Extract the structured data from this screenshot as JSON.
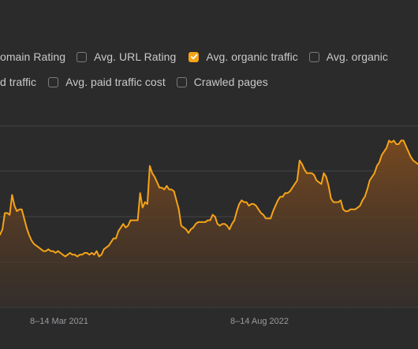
{
  "legend": {
    "row1": [
      {
        "label": "omain Rating",
        "checked": null
      },
      {
        "label": "Avg. URL Rating",
        "checked": false
      },
      {
        "label": "Avg. organic traffic",
        "checked": true
      },
      {
        "label": "Avg. organic",
        "checked": false
      }
    ],
    "row2": [
      {
        "label": "d traffic",
        "checked": null
      },
      {
        "label": "Avg. paid traffic cost",
        "checked": false
      },
      {
        "label": "Crawled pages",
        "checked": false
      }
    ]
  },
  "colors": {
    "background": "#2b2b2c",
    "line": "#f5a317",
    "area_top": "#7a4a1f",
    "area_bottom": "#3a3029",
    "grid": "#454547",
    "text": "#c9c9cb",
    "tick_text": "#9a9a9e"
  },
  "chart_data": {
    "type": "area",
    "x_tick_labels": [
      "8–14 Mar 2021",
      "8–14 Aug 2022"
    ],
    "grid": true,
    "y_range": [
      0,
      100
    ],
    "series": [
      {
        "values": [
          40,
          43,
          52,
          52,
          51,
          62,
          56,
          53,
          54,
          54,
          49,
          44,
          40,
          37,
          35,
          34,
          33,
          32,
          31,
          31,
          32,
          31,
          31,
          30,
          31,
          30,
          29,
          28,
          29,
          30,
          29,
          29,
          28,
          29,
          29,
          30,
          30,
          29,
          30,
          29,
          31,
          28,
          29,
          32,
          33,
          34,
          36,
          38,
          38,
          42,
          44,
          46,
          44,
          45,
          48,
          48,
          48,
          48,
          63,
          55,
          58,
          57,
          78,
          74,
          72,
          69,
          66,
          66,
          65,
          67,
          65,
          65,
          64,
          59,
          54,
          45,
          44,
          43,
          41,
          43,
          44,
          46,
          47,
          47,
          47,
          47,
          48,
          48,
          51,
          50,
          46,
          45,
          46,
          46,
          45,
          43,
          46,
          48,
          53,
          57,
          59,
          58,
          58,
          56,
          57,
          57,
          56,
          54,
          52,
          51,
          49,
          49,
          49,
          53,
          56,
          59,
          61,
          61,
          63,
          63,
          64,
          66,
          68,
          70,
          81,
          79,
          76,
          74,
          74,
          74,
          73,
          70,
          69,
          68,
          74,
          72,
          67,
          60,
          58,
          58,
          58,
          59,
          54,
          53,
          53,
          54,
          54,
          54,
          55,
          56,
          59,
          61,
          65,
          70,
          72,
          74,
          78,
          80,
          84,
          86,
          88,
          92,
          91,
          92,
          90,
          90,
          92,
          92,
          89,
          86,
          83,
          81,
          80,
          79
        ]
      }
    ]
  }
}
